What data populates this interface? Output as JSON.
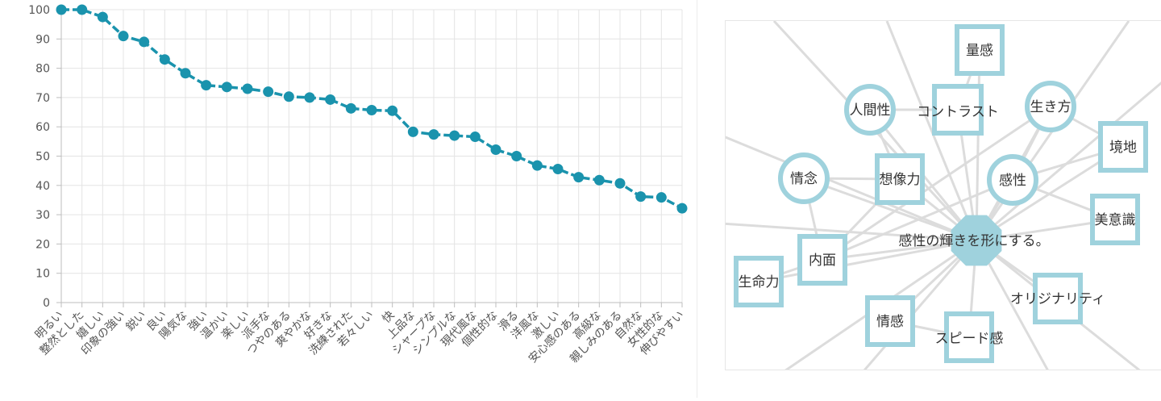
{
  "colors": {
    "line": "#1a93ad",
    "grid": "#e4e4e4",
    "axis": "#bdbdbd",
    "tick_text": "#555555",
    "node_stroke": "#9fd2dd",
    "center_fill": "#9fd2dd",
    "edge": "#dcdcdc",
    "node_text": "#333333"
  },
  "chart_data": {
    "type": "line",
    "ylim": [
      0,
      100
    ],
    "yticks": [
      0,
      10,
      20,
      30,
      40,
      50,
      60,
      70,
      80,
      90,
      100
    ],
    "grid": true,
    "categories": [
      "明るい",
      "整然とした",
      "嬉しい",
      "印象の強い",
      "鋭い",
      "良い",
      "陽気な",
      "強い",
      "温かい",
      "楽しい",
      "派手な",
      "つやのある",
      "爽やかな",
      "好きな",
      "洗練された",
      "若々しい",
      "快",
      "上品な",
      "シャープな",
      "シンプルな",
      "現代風な",
      "個性的な",
      "滑る",
      "洋風な",
      "激しい",
      "安心感のある",
      "高級な",
      "親しみのある",
      "自然な",
      "女性的な",
      "伸びやすい"
    ],
    "values": [
      100,
      100,
      97.5,
      91,
      89,
      83,
      78.3,
      74.2,
      73.6,
      73,
      72,
      70.3,
      70,
      69.3,
      66.3,
      65.7,
      65.5,
      58.3,
      57.4,
      57,
      56.6,
      52.2,
      50,
      46.8,
      45.6,
      42.8,
      41.8,
      40.7,
      36.2,
      35.9,
      32.2
    ]
  },
  "network": {
    "center_label": "感性の輝きを形にする。",
    "nodes": [
      {
        "id": "ryoukan",
        "label": "量感",
        "shape": "square"
      },
      {
        "id": "contrast",
        "label": "コントラスト",
        "shape": "square"
      },
      {
        "id": "ningensei",
        "label": "人間性",
        "shape": "circle"
      },
      {
        "id": "ikikata",
        "label": "生き方",
        "shape": "circle"
      },
      {
        "id": "kyouchi",
        "label": "境地",
        "shape": "square"
      },
      {
        "id": "jounen",
        "label": "情念",
        "shape": "circle"
      },
      {
        "id": "souzouryoku",
        "label": "想像力",
        "shape": "square"
      },
      {
        "id": "kansei",
        "label": "感性",
        "shape": "circle"
      },
      {
        "id": "biishiki",
        "label": "美意識",
        "shape": "square"
      },
      {
        "id": "naimen",
        "label": "内面",
        "shape": "square"
      },
      {
        "id": "seimeiryoku",
        "label": "生命力",
        "shape": "square"
      },
      {
        "id": "original",
        "label": "オリジナリティ",
        "shape": "square"
      },
      {
        "id": "jokan",
        "label": "情感",
        "shape": "square"
      },
      {
        "id": "speed",
        "label": "スピード感",
        "shape": "square"
      }
    ]
  }
}
